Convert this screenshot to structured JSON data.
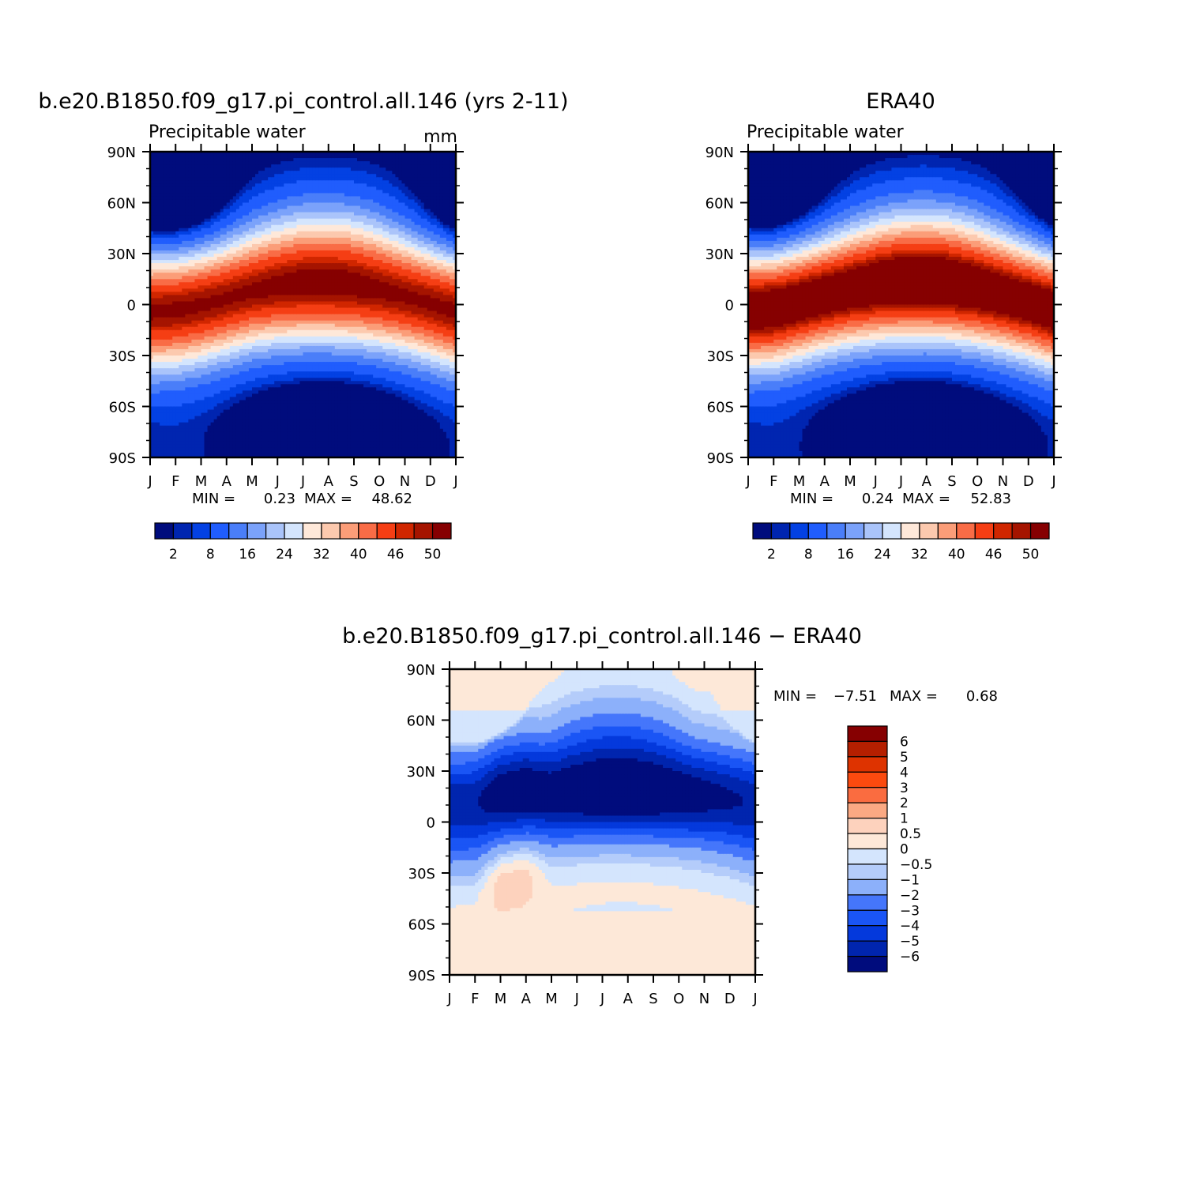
{
  "chart_data": [
    {
      "type": "heatmap",
      "title": "b.e20.B1850.f09_g17.pi_control.all.146 (yrs 2-11)",
      "subtitle": "Precipitable water",
      "units": "mm",
      "x_ticks": [
        "J",
        "F",
        "M",
        "A",
        "M",
        "J",
        "J",
        "A",
        "S",
        "O",
        "N",
        "D",
        "J"
      ],
      "y_ticks": [
        "90N",
        "60N",
        "30N",
        "0",
        "30S",
        "60S",
        "90S"
      ],
      "y_range": [
        -90,
        90
      ],
      "min_label": "MIN =",
      "min_value": "0.23",
      "max_label": "MAX =",
      "max_value": "48.62",
      "colorbar_labels": [
        "2",
        "8",
        "16",
        "24",
        "32",
        "40",
        "46",
        "50"
      ],
      "colorbar_orientation": "horizontal",
      "peak_value": 48.6,
      "peak_latitude": 8,
      "itcz_lat": [
        -4,
        -3,
        0,
        4,
        8,
        10,
        11,
        11,
        10,
        8,
        5,
        1,
        -4
      ]
    },
    {
      "type": "heatmap",
      "title": "ERA40",
      "subtitle": "Precipitable water",
      "units": "",
      "x_ticks": [
        "J",
        "F",
        "M",
        "A",
        "M",
        "J",
        "J",
        "A",
        "S",
        "O",
        "N",
        "D",
        "J"
      ],
      "y_ticks": [
        "90N",
        "60N",
        "30N",
        "0",
        "30S",
        "60S",
        "90S"
      ],
      "y_range": [
        -90,
        90
      ],
      "min_label": "MIN =",
      "min_value": "0.24",
      "max_label": "MAX =",
      "max_value": "52.83",
      "colorbar_labels": [
        "2",
        "8",
        "16",
        "24",
        "32",
        "40",
        "46",
        "50"
      ],
      "colorbar_orientation": "horizontal",
      "peak_value": 52.8,
      "peak_latitude": 7,
      "itcz_lat": [
        -3,
        -2,
        2,
        6,
        9,
        11,
        12,
        12,
        11,
        9,
        6,
        2,
        -3
      ]
    },
    {
      "type": "heatmap",
      "title": "b.e20.B1850.f09_g17.pi_control.all.146 − ERA40",
      "subtitle": "",
      "units": "",
      "x_ticks": [
        "J",
        "F",
        "M",
        "A",
        "M",
        "J",
        "J",
        "A",
        "S",
        "O",
        "N",
        "D",
        "J"
      ],
      "y_ticks": [
        "90N",
        "60N",
        "30N",
        "0",
        "30S",
        "60S",
        "90S"
      ],
      "y_range": [
        -90,
        90
      ],
      "min_label": "MIN =",
      "min_value": "−7.51",
      "max_label": "MAX =",
      "max_value": "0.68",
      "colorbar_labels": [
        "6",
        "5",
        "4",
        "3",
        "2",
        "1",
        "0.5",
        "0",
        "−0.5",
        "−1",
        "−2",
        "−3",
        "−4",
        "−5",
        "−6"
      ],
      "colorbar_orientation": "vertical"
    }
  ],
  "palettes": {
    "full": [
      "#000c7d",
      "#0025b0",
      "#0341e3",
      "#205dfd",
      "#4a7ef9",
      "#7ba2fa",
      "#aac4fa",
      "#d4e5fd",
      "#fee8d9",
      "#fcc9ae",
      "#fb9d78",
      "#f96c46",
      "#f53e14",
      "#d02600",
      "#a51400",
      "#860001"
    ],
    "diff": [
      "#860001",
      "#b51f00",
      "#de3300",
      "#fb4a0f",
      "#fa6c40",
      "#fba983",
      "#fdd2bd",
      "#fde8d8",
      "#d4e5fd",
      "#b4ccfa",
      "#8cb0fa",
      "#4576fb",
      "#1a55f5",
      "#0439dc",
      "#0025ae",
      "#000c7d"
    ]
  }
}
